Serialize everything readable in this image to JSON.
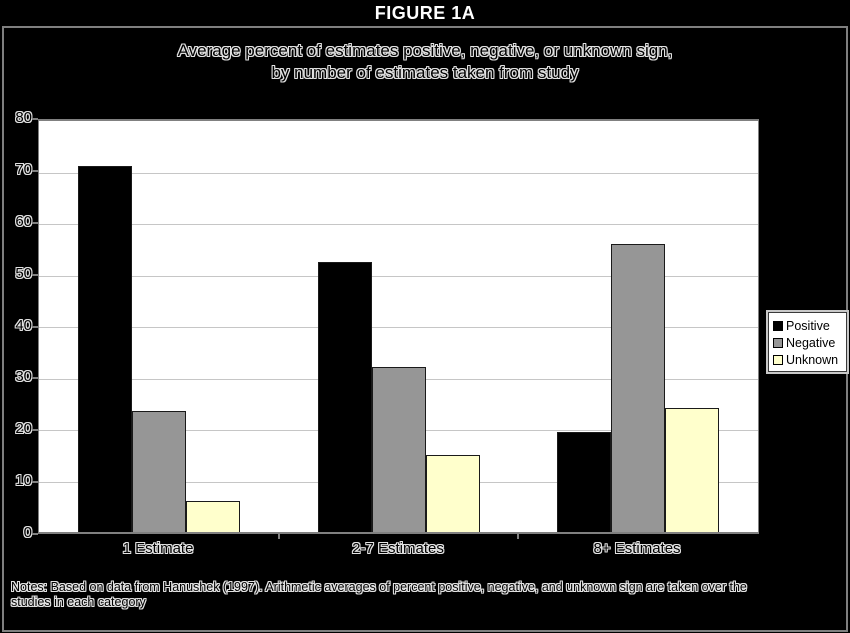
{
  "figure_label": "FIGURE 1A",
  "chart_data": {
    "type": "bar",
    "title": "Average percent of estimates positive, negative, or unknown sign, by number of estimates taken from study",
    "title_line1": "Average percent of estimates positive, negative, or unknown sign,",
    "title_line2": "by number of estimates taken from study",
    "categories": [
      "1 Estimate",
      "2-7 Estimates",
      "8+ Estimates"
    ],
    "series": [
      {
        "name": "Positive",
        "color": "#000000",
        "values": [
          71,
          52.5,
          19.5
        ]
      },
      {
        "name": "Negative",
        "color": "#969696",
        "values": [
          23.5,
          32,
          56
        ]
      },
      {
        "name": "Unknown",
        "color": "#ffffcc",
        "values": [
          6,
          15,
          24
        ]
      }
    ],
    "ylim": [
      0,
      80
    ],
    "y_ticks": [
      80,
      70,
      60,
      50,
      40,
      30,
      20,
      10,
      0
    ],
    "grid": true,
    "legend_position": "right",
    "xlabel": "",
    "ylabel": "",
    "plot_bg": "#ffffff",
    "chart_bg": "#000000",
    "gridline_color": "#c6c6c6",
    "axis_color": "#808080"
  },
  "legend": {
    "items": [
      "Positive",
      "Negative",
      "Unknown"
    ]
  },
  "notes": {
    "line1": "Notes: Based on data from Hanushek (1997). Arithmetic averages of percent positive, negative, and unknown sign are taken over the",
    "line2": "studies in each category"
  }
}
